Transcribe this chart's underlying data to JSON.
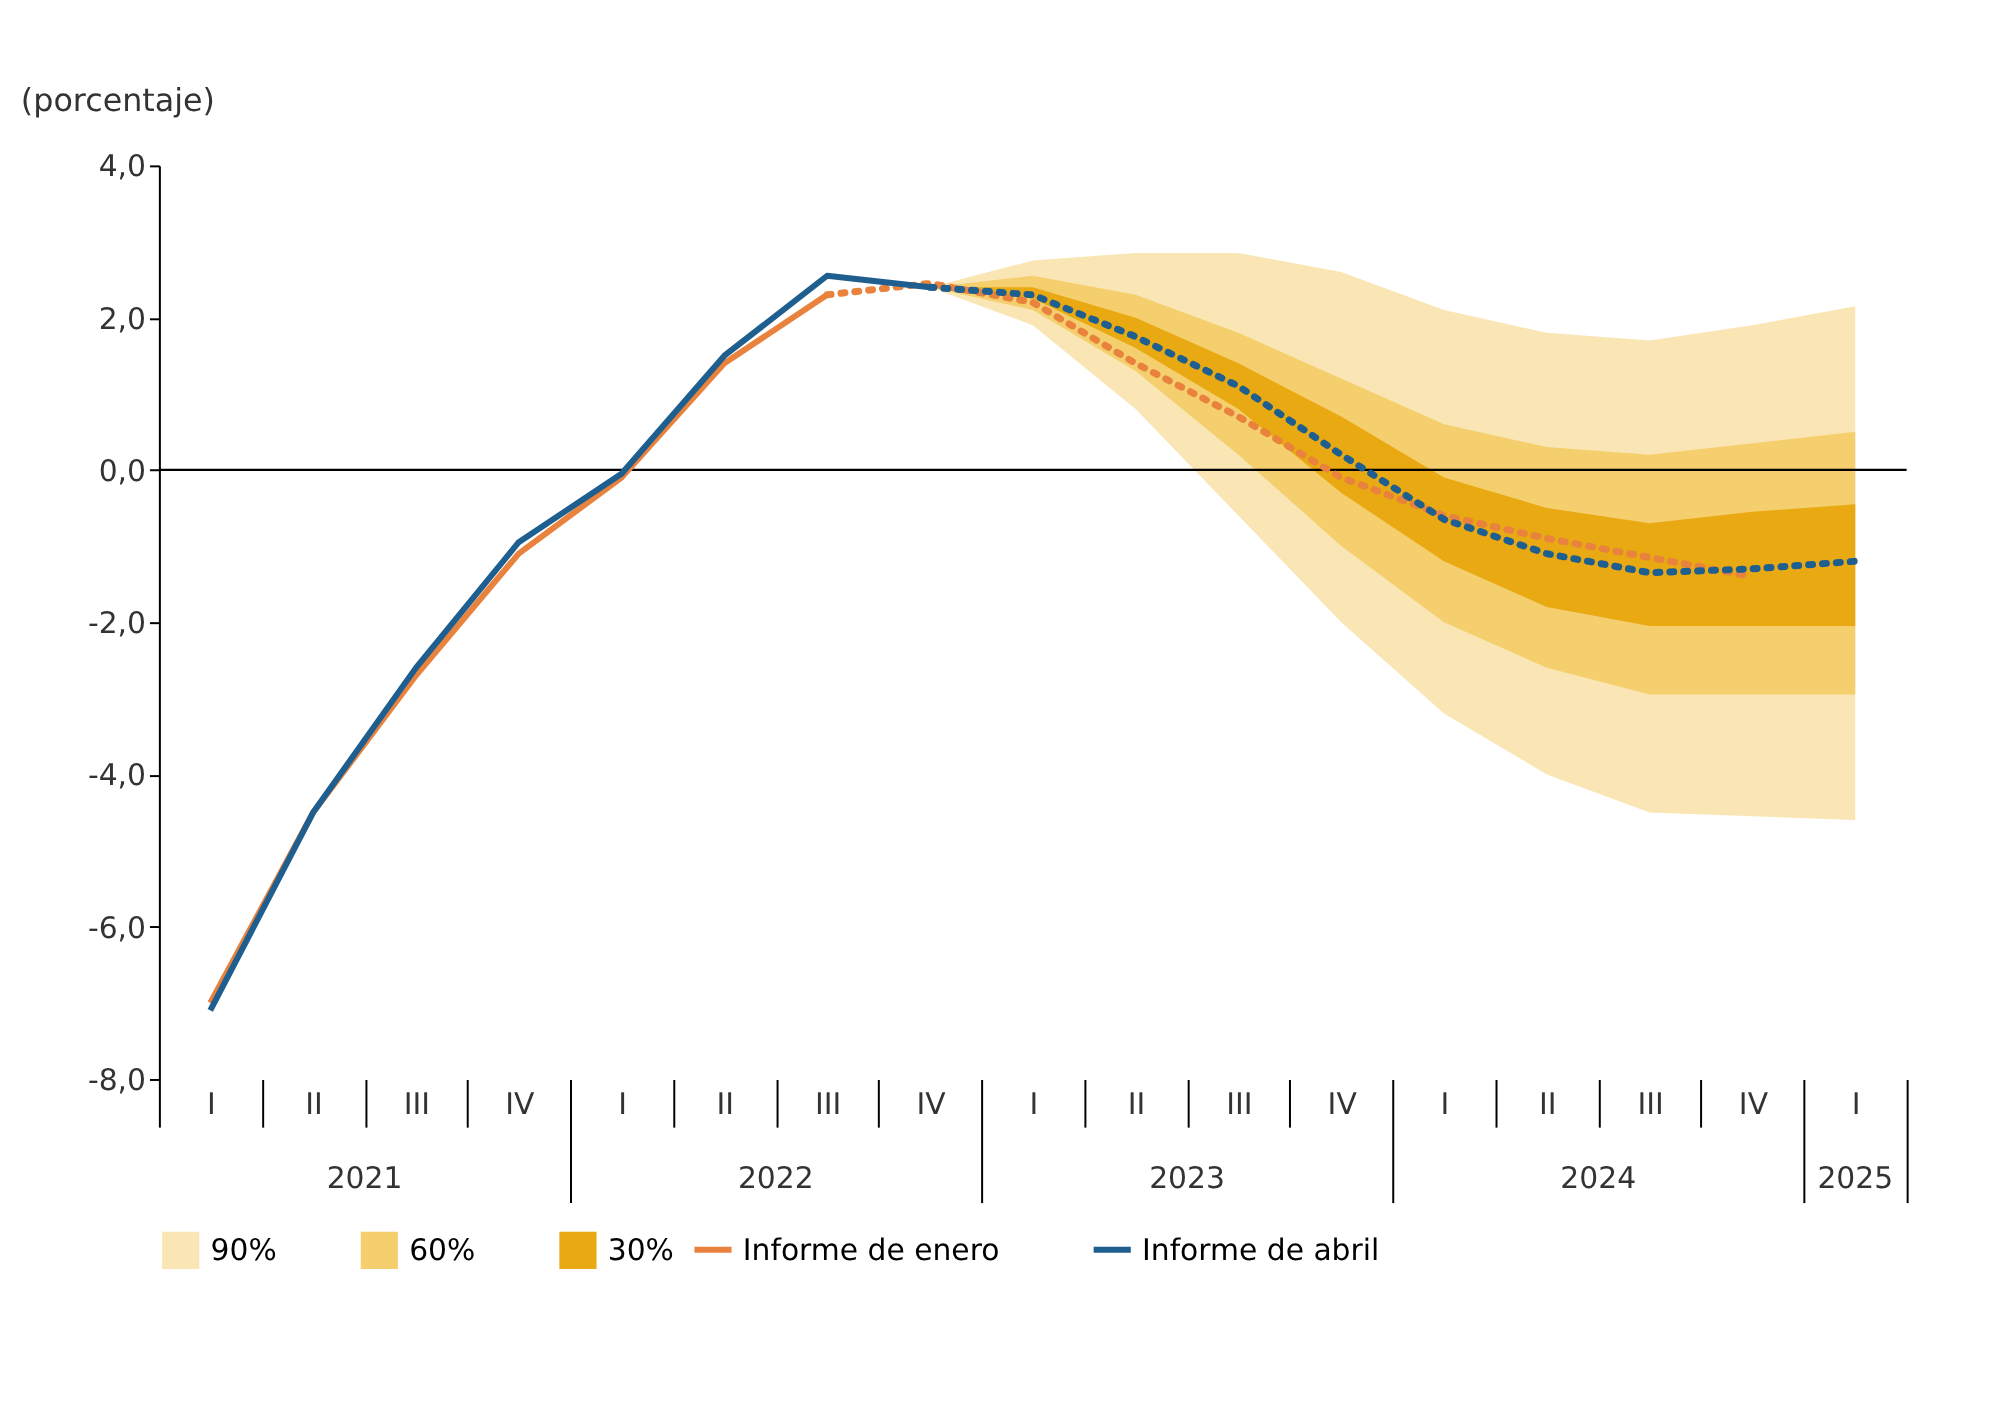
{
  "chart_data": {
    "type": "line",
    "ylabel": "(porcentaje)",
    "categories": [
      "I",
      "II",
      "III",
      "IV",
      "I",
      "II",
      "III",
      "IV",
      "I",
      "II",
      "III",
      "IV",
      "I",
      "II",
      "III",
      "IV",
      "I"
    ],
    "annotations": [
      "2021",
      "2022",
      "2023",
      "2024",
      "2025"
    ],
    "ylim": [
      -8,
      4
    ],
    "yticks": [
      {
        "value": 4,
        "label": "4,0"
      },
      {
        "value": 2,
        "label": "2,0"
      },
      {
        "value": 0,
        "label": "0,0"
      },
      {
        "value": -2,
        "label": "-2,0"
      },
      {
        "value": -4,
        "label": "-4,0"
      },
      {
        "value": -6,
        "label": "-6,0"
      },
      {
        "value": -8,
        "label": "-8,0"
      }
    ],
    "grid": false,
    "legend": "bottom",
    "ref_lines": [
      {
        "axis": "y",
        "value": 0,
        "color": "#000000"
      }
    ],
    "series": [
      {
        "name": "90%",
        "type": "area",
        "color": "#fae6b4",
        "values": [
          null,
          null,
          null,
          null,
          null,
          null,
          null,
          null,
          null,
          null,
          null,
          null,
          null,
          null,
          null,
          null,
          null
        ],
        "lower": [
          null,
          null,
          null,
          null,
          null,
          null,
          null,
          2.4,
          1.9,
          0.8,
          -0.6,
          -2.0,
          -3.2,
          -4.0,
          -4.5,
          -4.55,
          -4.6
        ],
        "upper": [
          null,
          null,
          null,
          null,
          null,
          null,
          null,
          2.4,
          2.75,
          2.85,
          2.85,
          2.6,
          2.1,
          1.8,
          1.7,
          1.9,
          2.15
        ]
      },
      {
        "name": "60%",
        "type": "area",
        "color": "#f5cf6e",
        "values": [
          null,
          null,
          null,
          null,
          null,
          null,
          null,
          null,
          null,
          null,
          null,
          null,
          null,
          null,
          null,
          null,
          null
        ],
        "lower": [
          null,
          null,
          null,
          null,
          null,
          null,
          null,
          2.4,
          2.1,
          1.3,
          0.2,
          -1.0,
          -2.0,
          -2.6,
          -2.95,
          -2.95,
          -2.95
        ],
        "upper": [
          null,
          null,
          null,
          null,
          null,
          null,
          null,
          2.4,
          2.55,
          2.3,
          1.8,
          1.2,
          0.6,
          0.3,
          0.2,
          0.35,
          0.5
        ]
      },
      {
        "name": "30%",
        "type": "area",
        "color": "#e8a912",
        "values": [
          null,
          null,
          null,
          null,
          null,
          null,
          null,
          null,
          null,
          null,
          null,
          null,
          null,
          null,
          null,
          null,
          null
        ],
        "lower": [
          null,
          null,
          null,
          null,
          null,
          null,
          null,
          2.4,
          2.25,
          1.6,
          0.8,
          -0.3,
          -1.2,
          -1.8,
          -2.05,
          -2.05,
          -2.05
        ],
        "upper": [
          null,
          null,
          null,
          null,
          null,
          null,
          null,
          2.4,
          2.4,
          2.0,
          1.4,
          0.7,
          -0.1,
          -0.5,
          -0.7,
          -0.55,
          -0.45
        ]
      },
      {
        "name": "Informe de enero",
        "type": "line",
        "line_style": "solid",
        "color": "#e8823c",
        "values": [
          -7.0,
          -4.5,
          -2.7,
          -1.1,
          -0.1,
          1.4,
          2.3,
          null,
          null,
          null,
          null,
          null,
          null,
          null,
          null,
          null,
          null
        ]
      },
      {
        "type": "line",
        "line_style": "dotted",
        "color": "#e8823c",
        "values": [
          null,
          null,
          null,
          null,
          null,
          null,
          2.3,
          2.45,
          2.2,
          1.4,
          0.7,
          -0.1,
          -0.6,
          -0.9,
          -1.15,
          -1.4,
          null
        ]
      },
      {
        "name": "Informe de abril",
        "type": "line",
        "line_style": "solid",
        "color": "#1f5f8f",
        "values": [
          -7.1,
          -4.5,
          -2.6,
          -0.95,
          -0.05,
          1.5,
          2.55,
          2.4,
          null,
          null,
          null,
          null,
          null,
          null,
          null,
          null,
          null
        ]
      },
      {
        "type": "line",
        "line_style": "dotted",
        "color": "#1f5f8f",
        "values": [
          null,
          null,
          null,
          null,
          null,
          null,
          null,
          2.4,
          2.3,
          1.75,
          1.1,
          0.2,
          -0.65,
          -1.1,
          -1.35,
          -1.3,
          -1.2
        ]
      }
    ]
  }
}
